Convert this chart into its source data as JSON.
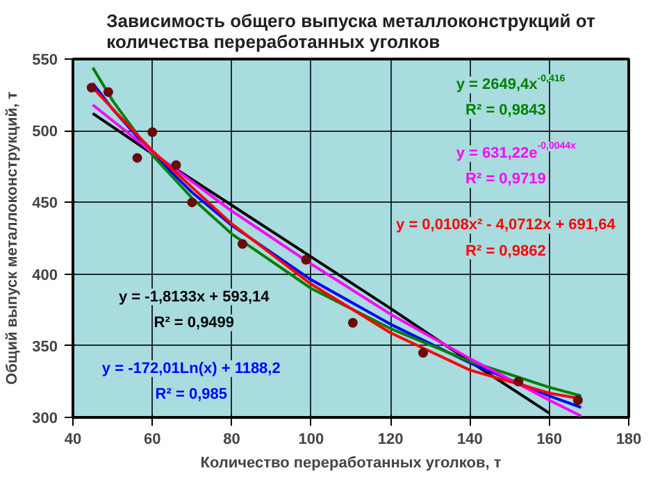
{
  "chart_data": {
    "type": "scatter",
    "title": "Зависимость общего выпуска металлоконструкций от\nколичества переработанных уголков",
    "xlabel": "Количество переработанных уголков, т",
    "ylabel": "Общий выпуск металлоконструкций, т",
    "xlim": [
      40,
      180
    ],
    "ylim": [
      300,
      550
    ],
    "xticks": [
      40,
      60,
      80,
      100,
      120,
      140,
      160,
      180
    ],
    "yticks": [
      300,
      350,
      400,
      450,
      500,
      550
    ],
    "grid": true,
    "marker": "circle",
    "series": [
      {
        "color": "#6b0a0a",
        "x": [
          44.7,
          48.9,
          56.2,
          60,
          66,
          70,
          82.7,
          98.7,
          110.5,
          128.2,
          152.2,
          167.2
        ],
        "values": [
          530,
          527,
          481,
          499,
          476,
          450,
          421,
          410,
          366,
          345,
          325,
          312
        ]
      },
      {
        "type": "line",
        "marker": "none",
        "name": "y = -1,8133x + 593,14\nR² = 0,9499",
        "color": "#000000",
        "x": [
          45,
          60,
          80,
          100,
          120,
          140,
          160
        ],
        "values": [
          512,
          484,
          448,
          412,
          376,
          339,
          303
        ]
      },
      {
        "type": "line",
        "marker": "none",
        "name": "y = -172,01Ln(x) + 1188,2\nR² = 0,985",
        "color": "#0000ff",
        "x": [
          45,
          50,
          60,
          70,
          80,
          100,
          120,
          140,
          160,
          168
        ],
        "values": [
          533,
          515,
          484,
          457,
          434,
          396,
          365,
          338,
          315,
          307
        ]
      },
      {
        "type": "line",
        "marker": "none",
        "name": "y = 2649,4x$^{-0,416}$\nR² = 0,9843",
        "color": "#008000",
        "x": [
          45,
          50,
          60,
          70,
          80,
          100,
          120,
          140,
          160,
          168
        ],
        "values": [
          544,
          521,
          483,
          453,
          428,
          390,
          362,
          339,
          321,
          315
        ]
      },
      {
        "type": "line",
        "marker": "none",
        "name": "y = 631,22e$^{-0,0044x}$\nR² = 0,9719",
        "color": "#ff00ff",
        "x": [
          45,
          60,
          80,
          100,
          120,
          140,
          160,
          168
        ],
        "values": [
          518,
          485,
          444,
          407,
          372,
          341,
          312,
          301
        ]
      },
      {
        "type": "line",
        "marker": "none",
        "name": "y = 0,0108x² - 4,0712x + 691,64\nR² = 0,9862",
        "color": "#ff0000",
        "x": [
          45,
          60,
          80,
          100,
          120,
          140,
          160,
          168
        ],
        "values": [
          530,
          486,
          435,
          393,
          359,
          333,
          317,
          313
        ]
      }
    ]
  }
}
